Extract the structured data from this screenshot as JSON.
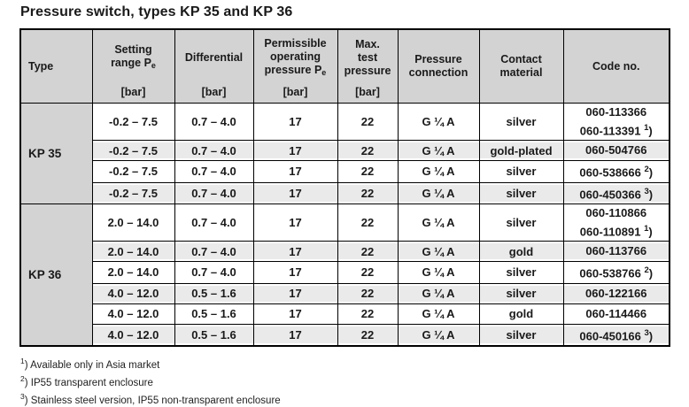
{
  "title": "Pressure switch, types KP 35 and KP 36",
  "colors": {
    "header_bg": "#d3d3d3",
    "type_column_bg": "#d3d3d3",
    "row_stripe_bg": "#eaeaea",
    "border": "#000000",
    "text": "#1a1a1a",
    "page_bg": "#ffffff"
  },
  "table": {
    "columns": [
      {
        "id": "type",
        "lines": [
          [
            "Type"
          ]
        ],
        "unit": "",
        "align": "left"
      },
      {
        "id": "setting_range",
        "lines": [
          [
            "Setting"
          ],
          [
            "range P",
            {
              "sub": "e"
            }
          ]
        ],
        "unit": "[bar]"
      },
      {
        "id": "differential",
        "lines": [
          [
            "Differential"
          ]
        ],
        "unit": "[bar]"
      },
      {
        "id": "operating_pressure",
        "lines": [
          [
            "Permissible"
          ],
          [
            "operating"
          ],
          [
            "pressure P",
            {
              "sub": "e"
            }
          ]
        ],
        "unit": "[bar]"
      },
      {
        "id": "test_pressure",
        "lines": [
          [
            "Max."
          ],
          [
            "test"
          ],
          [
            "pressure"
          ]
        ],
        "unit": "[bar]"
      },
      {
        "id": "connection",
        "lines": [
          [
            "Pressure"
          ],
          [
            "connection"
          ]
        ],
        "unit": ""
      },
      {
        "id": "contact",
        "lines": [
          [
            "Contact"
          ],
          [
            "material"
          ]
        ],
        "unit": ""
      },
      {
        "id": "code",
        "lines": [
          [
            "Code no."
          ]
        ],
        "unit": ""
      }
    ],
    "groups": [
      {
        "type": "KP 35",
        "rows": [
          {
            "setting_range": "-0.2 – 7.5",
            "differential": "0.7 – 4.0",
            "operating_pressure": "17",
            "test_pressure": "22",
            "connection": "G ¼ A",
            "contact": "silver",
            "codes": [
              {
                "text": "060-113366"
              },
              {
                "text": "060-113391",
                "note": "1"
              }
            ]
          },
          {
            "setting_range": "-0.2 – 7.5",
            "differential": "0.7 – 4.0",
            "operating_pressure": "17",
            "test_pressure": "22",
            "connection": "G ¼ A",
            "contact": "gold-plated",
            "codes": [
              {
                "text": "060-504766"
              }
            ]
          },
          {
            "setting_range": "-0.2 – 7.5",
            "differential": "0.7 – 4.0",
            "operating_pressure": "17",
            "test_pressure": "22",
            "connection": "G ¼ A",
            "contact": "silver",
            "codes": [
              {
                "text": "060-538666",
                "note": "2"
              }
            ]
          },
          {
            "setting_range": "-0.2 – 7.5",
            "differential": "0.7 – 4.0",
            "operating_pressure": "17",
            "test_pressure": "22",
            "connection": "G ¼ A",
            "contact": "silver",
            "codes": [
              {
                "text": "060-450366",
                "note": "3"
              }
            ]
          }
        ]
      },
      {
        "type": "KP 36",
        "rows": [
          {
            "setting_range": "2.0 – 14.0",
            "differential": "0.7 – 4.0",
            "operating_pressure": "17",
            "test_pressure": "22",
            "connection": "G ¼ A",
            "contact": "silver",
            "codes": [
              {
                "text": "060-110866"
              },
              {
                "text": "060-110891",
                "note": "1"
              }
            ]
          },
          {
            "setting_range": "2.0 – 14.0",
            "differential": "0.7 – 4.0",
            "operating_pressure": "17",
            "test_pressure": "22",
            "connection": "G ¼ A",
            "contact": "gold",
            "codes": [
              {
                "text": "060-113766"
              }
            ]
          },
          {
            "setting_range": "2.0 – 14.0",
            "differential": "0.7 – 4.0",
            "operating_pressure": "17",
            "test_pressure": "22",
            "connection": "G ¼ A",
            "contact": "silver",
            "codes": [
              {
                "text": "060-538766",
                "note": "2"
              }
            ]
          },
          {
            "setting_range": "4.0 – 12.0",
            "differential": "0.5 – 1.6",
            "operating_pressure": "17",
            "test_pressure": "22",
            "connection": "G ¼ A",
            "contact": "silver",
            "codes": [
              {
                "text": "060-122166"
              }
            ]
          },
          {
            "setting_range": "4.0 – 12.0",
            "differential": "0.5 – 1.6",
            "operating_pressure": "17",
            "test_pressure": "22",
            "connection": "G ¼ A",
            "contact": "gold",
            "codes": [
              {
                "text": "060-114466"
              }
            ]
          },
          {
            "setting_range": "4.0 – 12.0",
            "differential": "0.5 – 1.6",
            "operating_pressure": "17",
            "test_pressure": "22",
            "connection": "G ¼ A",
            "contact": "silver",
            "codes": [
              {
                "text": "060-450166",
                "note": "3"
              }
            ]
          }
        ]
      }
    ]
  },
  "footnotes": [
    {
      "marker": "1",
      "text": "Available only in Asia market"
    },
    {
      "marker": "2",
      "text": "IP55 transparent enclosure"
    },
    {
      "marker": "3",
      "text": "Stainless steel version, IP55 non-transparent enclosure"
    }
  ]
}
